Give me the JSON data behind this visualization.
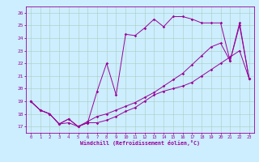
{
  "title": "",
  "xlabel": "Windchill (Refroidissement éolien,°C)",
  "ylabel": "",
  "bg_color": "#cceeff",
  "line_color": "#990099",
  "grid_color": "#aaccbb",
  "x_ticks": [
    0,
    1,
    2,
    3,
    4,
    5,
    6,
    7,
    8,
    9,
    10,
    11,
    12,
    13,
    14,
    15,
    16,
    17,
    18,
    19,
    20,
    21,
    22,
    23
  ],
  "y_ticks": [
    17,
    18,
    19,
    20,
    21,
    22,
    23,
    24,
    25,
    26
  ],
  "xlim": [
    -0.5,
    23.5
  ],
  "ylim": [
    16.5,
    26.5
  ],
  "line1_x": [
    0,
    1,
    2,
    3,
    4,
    5,
    6,
    7,
    8,
    9,
    10,
    11,
    12,
    13,
    14,
    15,
    16,
    17,
    18,
    19,
    20,
    21,
    22,
    23
  ],
  "line1_y": [
    19.0,
    18.3,
    18.0,
    17.2,
    17.6,
    17.0,
    17.3,
    17.3,
    17.5,
    17.8,
    18.2,
    18.5,
    19.0,
    19.5,
    19.8,
    20.0,
    20.2,
    20.5,
    21.0,
    21.5,
    22.0,
    22.5,
    23.0,
    20.8
  ],
  "line2_x": [
    0,
    1,
    2,
    3,
    4,
    5,
    6,
    7,
    8,
    9,
    10,
    11,
    12,
    13,
    14,
    15,
    16,
    17,
    18,
    19,
    20,
    21,
    22,
    23
  ],
  "line2_y": [
    19.0,
    18.3,
    18.0,
    17.2,
    17.6,
    17.0,
    17.3,
    19.8,
    22.0,
    19.5,
    24.3,
    24.2,
    24.8,
    25.5,
    24.9,
    25.7,
    25.7,
    25.5,
    25.2,
    25.2,
    25.2,
    22.2,
    25.0,
    20.8
  ],
  "line3_x": [
    0,
    1,
    2,
    3,
    4,
    5,
    6,
    7,
    8,
    9,
    10,
    11,
    12,
    13,
    14,
    15,
    16,
    17,
    18,
    19,
    20,
    21,
    22,
    23
  ],
  "line3_y": [
    19.0,
    18.3,
    18.0,
    17.2,
    17.3,
    17.0,
    17.4,
    17.8,
    18.0,
    18.3,
    18.6,
    18.9,
    19.3,
    19.7,
    20.2,
    20.7,
    21.2,
    21.9,
    22.6,
    23.3,
    23.6,
    22.2,
    25.2,
    20.8
  ]
}
